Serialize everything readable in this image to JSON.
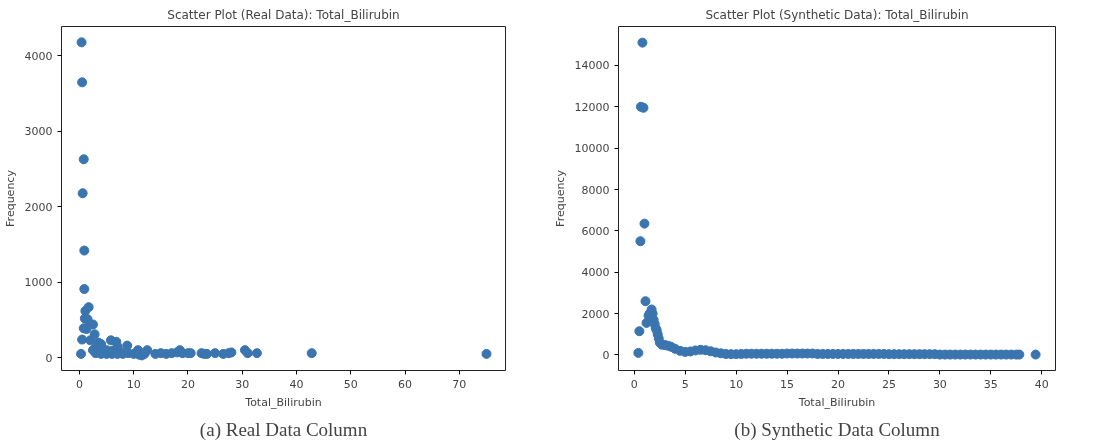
{
  "chart_data": [
    {
      "type": "scatter",
      "title": "Scatter Plot (Real Data): Total_Bilirubin",
      "xlabel": "Total_Bilirubin",
      "ylabel": "Frequency",
      "color": "#3b75af",
      "marker": "circle",
      "grid": false,
      "x": [
        0.4,
        0.5,
        0.8,
        0.6,
        0.9,
        0.9,
        1.1,
        1.7,
        1.0,
        1.5,
        0.8,
        1.3,
        2.5,
        0.5,
        2.0,
        2.8,
        2.0,
        3.5,
        4.0,
        3.0,
        2.5,
        5.0,
        5.8,
        6.8,
        7.0,
        8.8,
        6.0,
        7.5,
        10.8,
        12.5,
        0.3,
        3.0,
        4.0,
        5.0,
        6.0,
        7.0,
        8.0,
        9.0,
        10.0,
        11.0,
        11.5,
        12.0,
        14.0,
        15.0,
        16.0,
        17.0,
        18.0,
        18.5,
        19.0,
        20.0,
        20.5,
        22.5,
        23.0,
        23.5,
        25.0,
        26.5,
        27.5,
        28.0,
        30.5,
        31.0,
        32.7,
        42.8,
        75.0
      ],
      "values": [
        4180,
        3650,
        2630,
        2180,
        1420,
        910,
        620,
        670,
        520,
        510,
        390,
        380,
        440,
        240,
        230,
        310,
        440,
        200,
        180,
        130,
        100,
        100,
        230,
        210,
        150,
        160,
        90,
        80,
        100,
        100,
        50,
        60,
        50,
        50,
        50,
        50,
        50,
        60,
        50,
        40,
        30,
        50,
        50,
        60,
        50,
        60,
        70,
        100,
        60,
        60,
        60,
        60,
        50,
        50,
        60,
        50,
        60,
        70,
        100,
        60,
        60,
        60,
        50
      ],
      "xlim": [
        -3.3,
        78.5
      ],
      "ylim": [
        -170,
        4390
      ],
      "xticks": [
        0,
        10,
        20,
        30,
        40,
        50,
        60,
        70
      ],
      "yticks": [
        0,
        1000,
        2000,
        3000,
        4000
      ],
      "annotations": [
        "(a) Real Data Column"
      ]
    },
    {
      "type": "scatter",
      "title": "Scatter Plot (Synthetic Data): Total_Bilirubin",
      "xlabel": "Total_Bilirubin",
      "ylabel": "Frequency",
      "color": "#3b75af",
      "marker": "circle",
      "grid": false,
      "x": [
        0.4,
        0.5,
        0.6,
        0.65,
        0.9,
        0.8,
        1.0,
        1.1,
        1.2,
        1.4,
        1.5,
        1.7,
        1.8,
        1.9,
        2.0,
        2.1,
        2.2,
        2.3,
        2.4,
        2.5,
        2.7,
        3.0,
        3.3,
        3.6,
        4.0,
        4.5,
        5.0,
        5.5,
        6.0,
        6.5,
        7.0,
        7.5,
        8.0,
        8.5,
        9.0,
        9.5,
        10.0,
        10.5,
        11.0,
        11.5,
        12.0,
        12.5,
        13.0,
        13.5,
        14.0,
        14.5,
        15.0,
        15.5,
        16.0,
        16.5,
        17.0,
        17.5,
        18.0,
        18.5,
        19.0,
        19.5,
        20.0,
        20.5,
        21.0,
        21.5,
        22.0,
        22.5,
        23.0,
        23.5,
        24.0,
        24.5,
        25.0,
        25.5,
        26.0,
        26.5,
        27.0,
        27.5,
        28.0,
        28.5,
        29.0,
        29.5,
        30.0,
        30.5,
        31.0,
        31.5,
        32.0,
        32.5,
        33.0,
        33.5,
        34.0,
        34.5,
        35.0,
        35.5,
        36.0,
        36.5,
        37.0,
        37.5,
        37.8,
        39.4
      ],
      "values": [
        100,
        1150,
        5500,
        12000,
        11950,
        15100,
        6350,
        2600,
        1550,
        1900,
        2000,
        2200,
        2000,
        1700,
        1500,
        1300,
        1200,
        1000,
        800,
        600,
        500,
        480,
        450,
        400,
        300,
        200,
        150,
        170,
        220,
        250,
        230,
        180,
        120,
        80,
        50,
        40,
        40,
        50,
        60,
        60,
        60,
        60,
        60,
        60,
        60,
        60,
        70,
        70,
        70,
        70,
        70,
        70,
        50,
        50,
        50,
        50,
        50,
        50,
        50,
        50,
        50,
        50,
        50,
        50,
        50,
        50,
        40,
        40,
        40,
        40,
        40,
        40,
        40,
        40,
        40,
        40,
        20,
        20,
        20,
        20,
        20,
        20,
        20,
        20,
        20,
        20,
        20,
        20,
        20,
        20,
        20,
        20,
        20,
        20
      ],
      "xlim": [
        -1.55,
        41.35
      ],
      "ylim": [
        -750,
        15880
      ],
      "xticks": [
        0,
        5,
        10,
        15,
        20,
        25,
        30,
        35,
        40
      ],
      "yticks": [
        0,
        2000,
        4000,
        6000,
        8000,
        10000,
        12000,
        14000
      ],
      "annotations": [
        "(b) Synthetic Data Column"
      ]
    }
  ]
}
